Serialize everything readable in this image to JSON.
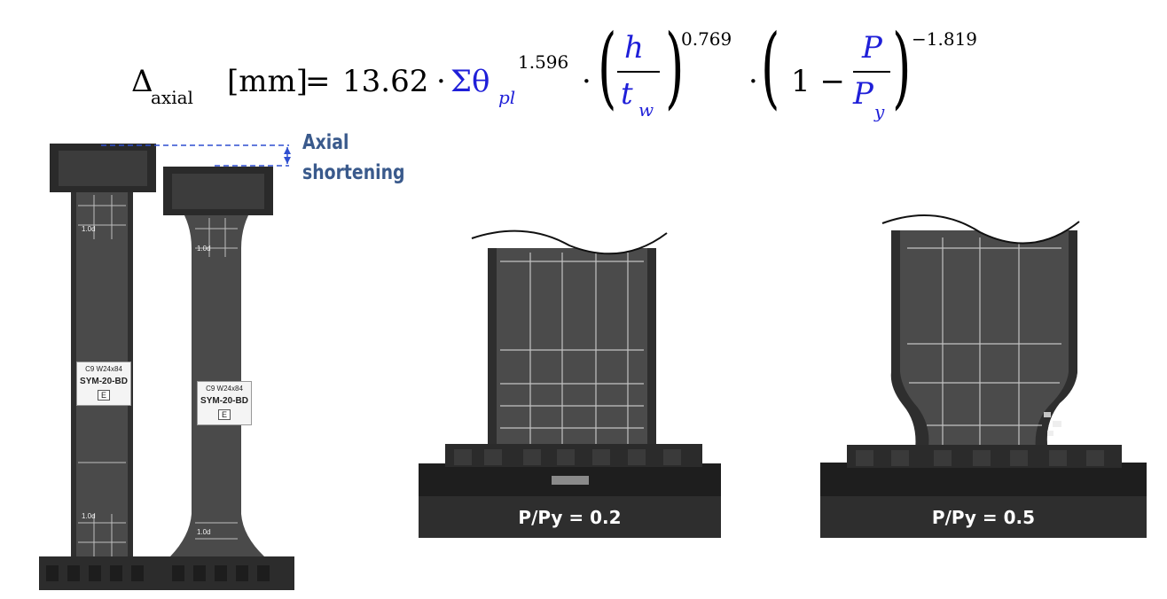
{
  "formula": {
    "delta": "Δ",
    "delta_sub": "axial",
    "unit": "[mm]",
    "equals": "=",
    "coefficient": "13.62",
    "dot": "·",
    "sum_theta": "Σθ",
    "sum_theta_sub": "pl",
    "exp_theta": "1.596",
    "h": "h",
    "t": "t",
    "t_sub": "w",
    "exp_ht": "0.769",
    "one_minus": "1 −",
    "P": "P",
    "Py": "P",
    "Py_sub": "y",
    "exp_p": "−1.819"
  },
  "annotation": {
    "line1": "Axial",
    "line2": "shortening",
    "color": "#3a5a8c"
  },
  "specimen_label": {
    "id": "C9",
    "section": "W24x84",
    "name": "SYM-20-BD",
    "face": "E"
  },
  "grid_marks": [
    "1.0d",
    "1.0d",
    "1.0d",
    "1.0d"
  ],
  "panels": [
    {
      "caption": "P/Py = 0.2"
    },
    {
      "caption": "P/Py = 0.5"
    }
  ]
}
